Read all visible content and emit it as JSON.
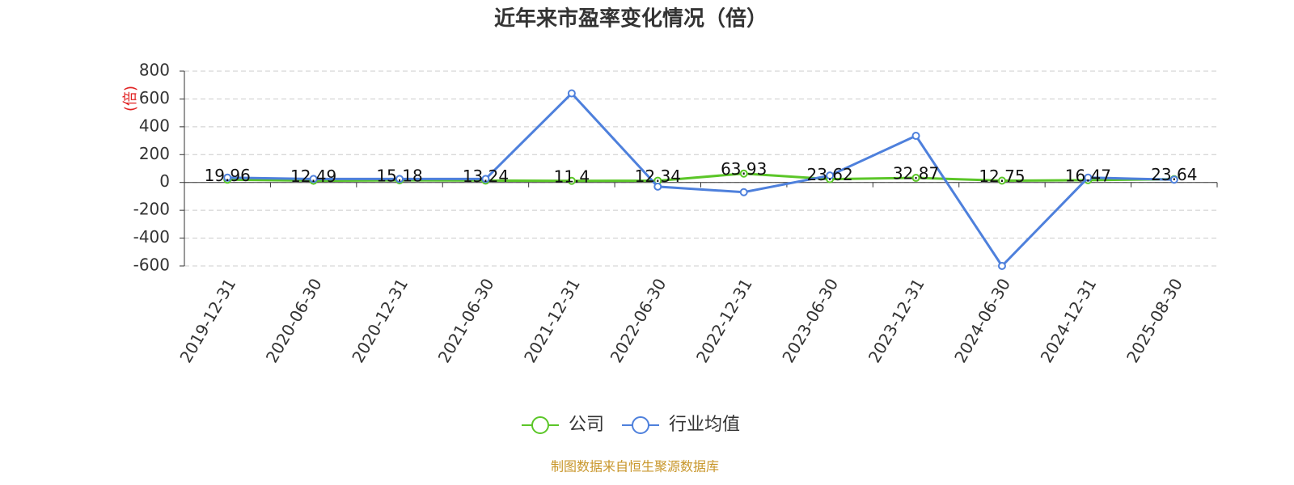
{
  "chart_data": {
    "type": "line",
    "title": "近年来市盈率变化情况（倍）",
    "y_label": "(倍)",
    "source": "制图数据来自恒生聚源数据库",
    "categories": [
      "2019-12-31",
      "2020-06-30",
      "2020-12-31",
      "2021-06-30",
      "2021-12-31",
      "2022-06-30",
      "2022-12-31",
      "2023-06-30",
      "2023-12-31",
      "2024-06-30",
      "2024-12-31",
      "2025-08-30"
    ],
    "series": [
      {
        "name": "公司",
        "color": "#5bc628",
        "values": [
          19.96,
          12.49,
          15.18,
          13.24,
          11.4,
          12.34,
          63.93,
          23.62,
          32.87,
          12.75,
          16.47,
          23.64
        ],
        "show_labels": true
      },
      {
        "name": "行业均值",
        "color": "#4e80dc",
        "values": [
          35,
          25,
          25,
          25,
          640,
          -30,
          -70,
          50,
          335,
          -600,
          35,
          20
        ],
        "show_labels": false
      }
    ],
    "ylim": [
      -600,
      800
    ],
    "yticks": [
      -600,
      -400,
      -200,
      0,
      200,
      400,
      600,
      800
    ],
    "grid": true,
    "legend": "bottom"
  }
}
